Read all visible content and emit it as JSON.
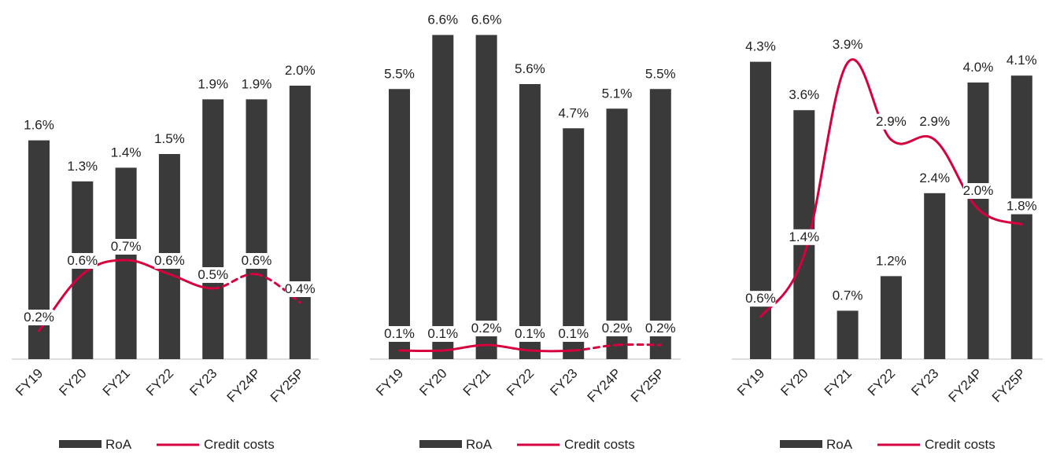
{
  "colors": {
    "bar": "#3a3a3a",
    "line": "#d6003f",
    "text": "#222222",
    "axis": "#bdbdbd"
  },
  "chart_data": [
    {
      "type": "bar",
      "categories": [
        "FY19",
        "FY20",
        "FY21",
        "FY22",
        "FY23",
        "FY24P",
        "FY25P"
      ],
      "series": [
        {
          "name": "RoA",
          "type": "bar",
          "values": [
            1.6,
            1.3,
            1.4,
            1.5,
            1.9,
            1.9,
            2.0
          ],
          "labels": [
            "1.6%",
            "1.3%",
            "1.4%",
            "1.5%",
            "1.9%",
            "1.9%",
            "2.0%"
          ]
        },
        {
          "name": "Credit costs",
          "type": "line",
          "values": [
            0.2,
            0.6,
            0.7,
            0.6,
            0.5,
            0.6,
            0.4
          ],
          "labels": [
            "0.2%",
            "0.6%",
            "0.7%",
            "0.6%",
            "0.5%",
            "0.6%",
            "0.4%"
          ],
          "projected_from": "FY24P"
        }
      ],
      "legend": [
        "RoA",
        "Credit costs"
      ],
      "legend_position": "bottom"
    },
    {
      "type": "bar",
      "categories": [
        "FY19",
        "FY20",
        "FY21",
        "FY22",
        "FY23",
        "FY24P",
        "FY25P"
      ],
      "series": [
        {
          "name": "RoA",
          "type": "bar",
          "values": [
            5.5,
            6.6,
            6.6,
            5.6,
            4.7,
            5.1,
            5.5
          ],
          "labels": [
            "5.5%",
            "6.6%",
            "6.6%",
            "5.6%",
            "4.7%",
            "5.1%",
            "5.5%"
          ]
        },
        {
          "name": "Credit costs",
          "type": "line",
          "values": [
            0.1,
            0.1,
            0.2,
            0.1,
            0.1,
            0.2,
            0.2
          ],
          "labels": [
            "0.1%",
            "0.1%",
            "0.2%",
            "0.1%",
            "0.1%",
            "0.2%",
            "0.2%"
          ],
          "projected_from": "FY24P"
        }
      ],
      "legend": [
        "RoA",
        "Credit costs"
      ],
      "legend_position": "bottom"
    },
    {
      "type": "bar",
      "categories": [
        "FY19",
        "FY20",
        "FY21",
        "FY22",
        "FY23",
        "FY24P",
        "FY25P"
      ],
      "series": [
        {
          "name": "RoA",
          "type": "bar",
          "values": [
            4.3,
            3.6,
            0.7,
            1.2,
            2.4,
            4.0,
            4.1
          ],
          "labels": [
            "4.3%",
            "3.6%",
            "0.7%",
            "1.2%",
            "2.4%",
            "4.0%",
            "4.1%"
          ]
        },
        {
          "name": "Credit costs",
          "type": "line",
          "values": [
            0.6,
            1.4,
            3.9,
            2.9,
            2.9,
            2.0,
            1.8
          ],
          "labels": [
            "0.6%",
            "1.4%",
            "3.9%",
            "2.9%",
            "2.9%",
            "2.0%",
            "1.8%"
          ]
        }
      ],
      "legend": [
        "RoA",
        "Credit costs"
      ],
      "legend_position": "bottom"
    }
  ]
}
